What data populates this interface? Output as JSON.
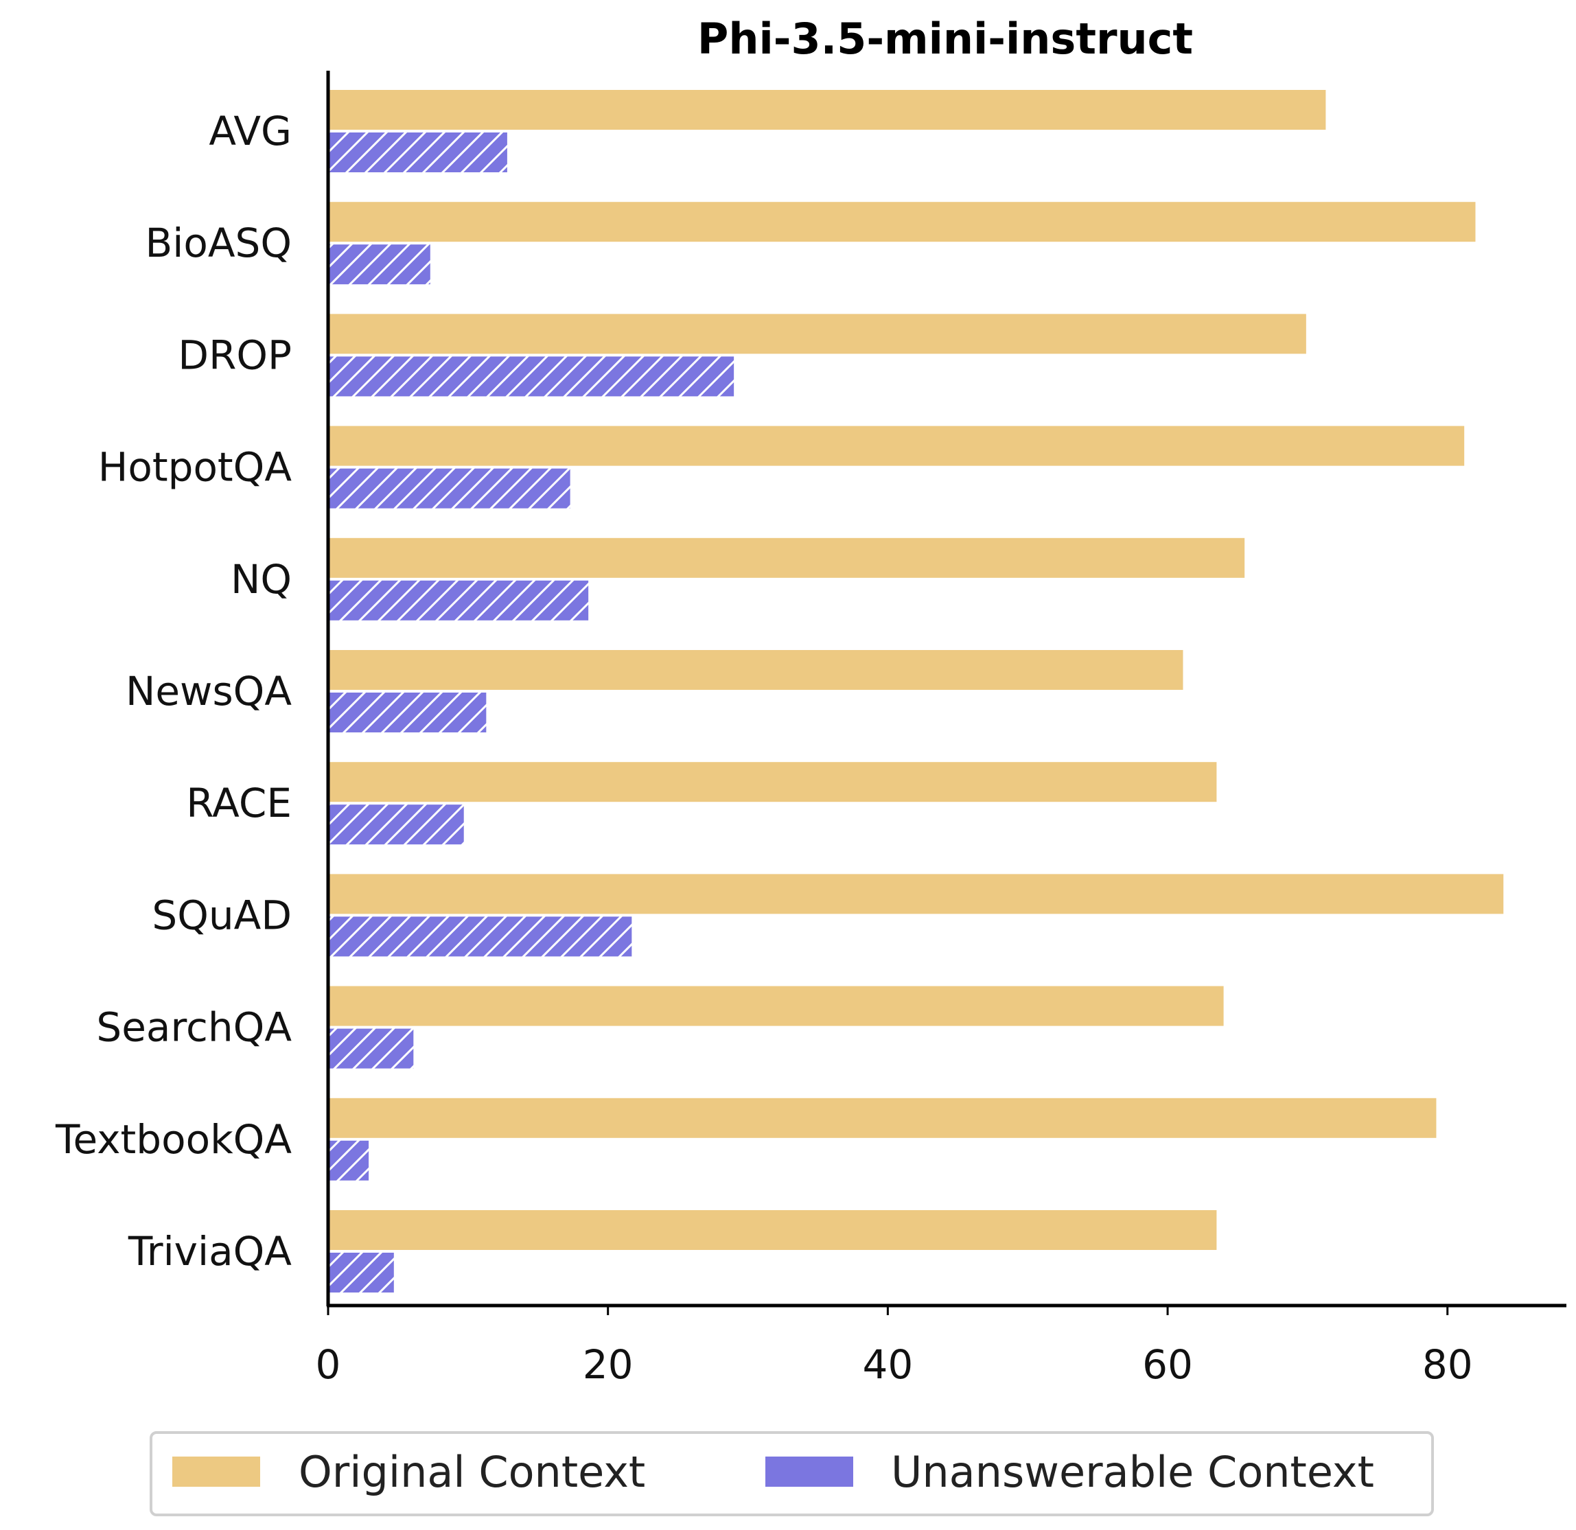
{
  "chart_data": {
    "type": "bar",
    "orientation": "horizontal",
    "title": "Phi-3.5-mini-instruct",
    "xlabel": "",
    "ylabel": "",
    "categories": [
      "AVG",
      "BioASQ",
      "DROP",
      "HotpotQA",
      "NQ",
      "NewsQA",
      "RACE",
      "SQuAD",
      "SearchQA",
      "TextbookQA",
      "TriviaQA"
    ],
    "series": [
      {
        "name": "Original Context",
        "color": "#edc982",
        "hatch": "none",
        "values": [
          71.3,
          82.0,
          69.9,
          81.2,
          65.5,
          61.1,
          63.5,
          84.0,
          64.0,
          79.2,
          63.5
        ]
      },
      {
        "name": "Unanswerable Context",
        "color": "#7b76e0",
        "hatch": "diagonal-white",
        "values": [
          12.8,
          7.3,
          29.0,
          17.3,
          18.6,
          11.3,
          9.7,
          21.7,
          6.1,
          2.9,
          4.7
        ]
      }
    ],
    "xlim": [
      0,
      88.5
    ],
    "xticks": [
      "0",
      "20",
      "40",
      "60",
      "80"
    ],
    "grid": false,
    "legend_position": "bottom-center"
  }
}
